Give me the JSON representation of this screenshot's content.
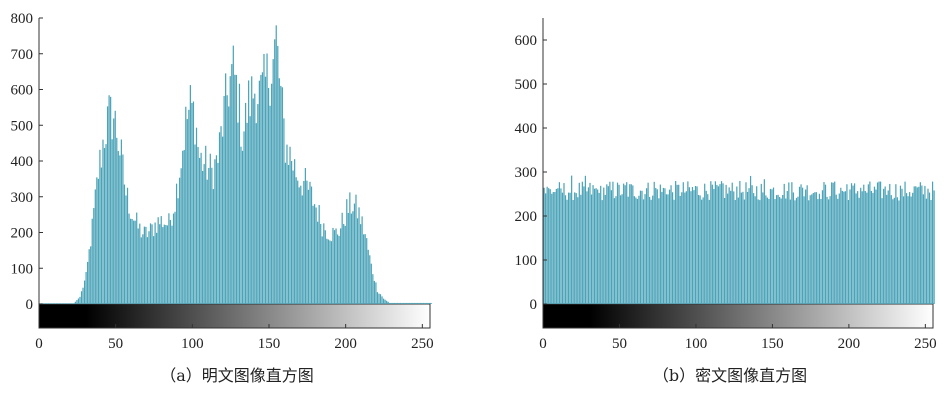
{
  "colors": {
    "bar": "#4aa3b8",
    "axis": "#333333",
    "text": "#222222"
  },
  "chart_data": [
    {
      "type": "bar",
      "caption": "（a）明文图像直方图",
      "xlim": [
        0,
        255
      ],
      "ylim": [
        0,
        800
      ],
      "xticks": [
        0,
        50,
        100,
        150,
        200,
        250
      ],
      "yticks": [
        0,
        100,
        200,
        300,
        400,
        500,
        600,
        700,
        800
      ],
      "colorbar": "grayscale 0-255",
      "x": [
        22,
        26,
        30,
        34,
        38,
        42,
        45,
        48,
        50,
        53,
        56,
        60,
        64,
        68,
        72,
        76,
        80,
        84,
        88,
        92,
        95,
        98,
        101,
        104,
        108,
        112,
        116,
        120,
        123,
        126,
        129,
        132,
        136,
        140,
        144,
        148,
        152,
        154,
        157,
        160,
        164,
        168,
        172,
        176,
        180,
        184,
        188,
        192,
        196,
        200,
        204,
        208,
        212,
        216,
        220,
        224,
        228
      ],
      "values": [
        2,
        20,
        80,
        220,
        380,
        490,
        540,
        540,
        500,
        420,
        320,
        260,
        220,
        200,
        210,
        235,
        240,
        230,
        300,
        420,
        520,
        570,
        540,
        420,
        400,
        380,
        420,
        550,
        630,
        670,
        600,
        480,
        580,
        620,
        600,
        650,
        700,
        760,
        600,
        460,
        420,
        370,
        350,
        320,
        280,
        230,
        210,
        200,
        220,
        270,
        290,
        260,
        200,
        110,
        40,
        15,
        3
      ]
    },
    {
      "type": "bar",
      "caption": "（b）密文图像直方图",
      "xlim": [
        0,
        255
      ],
      "ylim": [
        0,
        650
      ],
      "xticks": [
        0,
        50,
        100,
        150,
        200,
        250
      ],
      "yticks": [
        0,
        100,
        200,
        300,
        400,
        500,
        600
      ],
      "colorbar": "grayscale 0-255",
      "values_summary": "approximately uniform, 256 bars fluctuating between about 230 and 290 (mean ≈ 255)"
    }
  ]
}
